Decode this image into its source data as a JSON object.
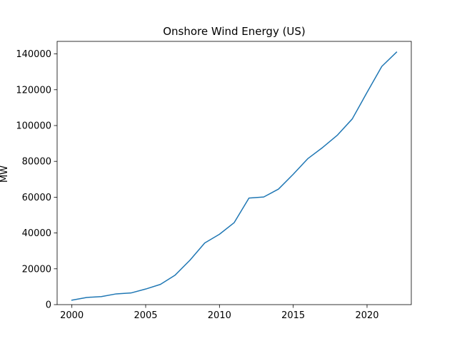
{
  "chart_data": {
    "type": "line",
    "title": "Onshore Wind Energy (US)",
    "xlabel": "",
    "ylabel": "MW",
    "xlim": [
      1999,
      2023
    ],
    "ylim": [
      0,
      147000
    ],
    "xticks": [
      2000,
      2005,
      2010,
      2015,
      2020
    ],
    "yticks": [
      0,
      20000,
      40000,
      60000,
      80000,
      100000,
      120000,
      140000
    ],
    "grid": false,
    "legend": "none",
    "series": [
      {
        "color": "#1f77b4",
        "x": [
          2000,
          2001,
          2002,
          2003,
          2004,
          2005,
          2006,
          2007,
          2008,
          2009,
          2010,
          2011,
          2012,
          2013,
          2014,
          2015,
          2016,
          2017,
          2018,
          2019,
          2020,
          2021,
          2022
        ],
        "y": [
          2500,
          4000,
          4500,
          6000,
          6500,
          8700,
          11300,
          16500,
          24800,
          34400,
          39300,
          45800,
          59500,
          60100,
          64500,
          72800,
          81600,
          87800,
          94700,
          103700,
          118500,
          133000,
          141000
        ]
      }
    ]
  }
}
